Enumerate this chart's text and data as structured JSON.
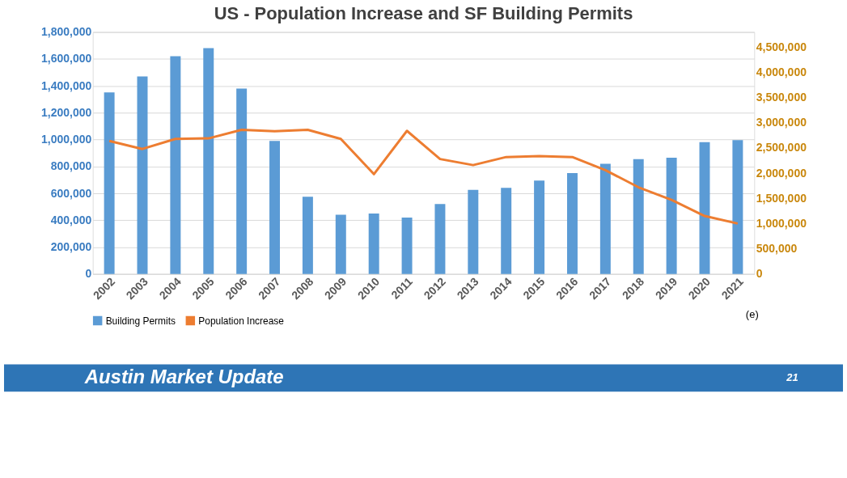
{
  "chart_data": {
    "type": "bar",
    "title": "US - Population Increase and SF Building Permits",
    "categories": [
      "2002",
      "2003",
      "2004",
      "2005",
      "2006",
      "2007",
      "2008",
      "2009",
      "2010",
      "2011",
      "2012",
      "2013",
      "2014",
      "2015",
      "2016",
      "2017",
      "2018",
      "2019",
      "2020",
      "2021"
    ],
    "series": [
      {
        "name": "Building Permits",
        "color": "#5b9bd5",
        "values": [
          1350000,
          1470000,
          1620000,
          1680000,
          1380000,
          990000,
          575000,
          440000,
          450000,
          420000,
          520000,
          625000,
          640000,
          695000,
          750000,
          820000,
          855000,
          865000,
          980000,
          995000
        ]
      },
      {
        "name": "Population Increase",
        "type": "line",
        "axis": "y2",
        "color": "#ed7d31",
        "values": [
          2640000,
          2480000,
          2680000,
          2690000,
          2860000,
          2830000,
          2860000,
          2680000,
          1980000,
          2840000,
          2280000,
          2160000,
          2320000,
          2340000,
          2320000,
          2060000,
          1720000,
          1470000,
          1150000,
          1000000
        ]
      }
    ],
    "ylim": [
      0,
      1800000
    ],
    "yticks": [
      0,
      {
        "value": 200000,
        "label": "200,000"
      },
      {
        "value": 400000,
        "label": "400,000"
      },
      {
        "value": 600000,
        "label": "600,000"
      },
      {
        "value": 800000,
        "label": "800,000"
      },
      {
        "value": 1000000,
        "label": "1,000,000"
      },
      {
        "value": 1200000,
        "label": "1,200,000"
      },
      {
        "value": 1400000,
        "label": "1,400,000"
      },
      {
        "value": 1600000,
        "label": "1,600,000"
      },
      {
        "value": 1800000,
        "label": "1,800,000"
      }
    ],
    "y2lim": [
      0,
      4800000
    ],
    "y2ticks": [
      0,
      {
        "value": 500000,
        "label": "500,000"
      },
      {
        "value": 1000000,
        "label": "1,000,000"
      },
      {
        "value": 1500000,
        "label": "1,500,000"
      },
      {
        "value": 2000000,
        "label": "2,000,000"
      },
      {
        "value": 2500000,
        "label": "2,500,000"
      },
      {
        "value": 3000000,
        "label": "3,000,000"
      },
      {
        "value": 3500000,
        "label": "3,500,000"
      },
      {
        "value": 4000000,
        "label": "4,000,000"
      },
      {
        "value": 4500000,
        "label": "4,500,000"
      }
    ],
    "grid": "y",
    "legend": "bottom",
    "annotations": [
      "(e)",
      "Austin Market Update",
      "21"
    ]
  }
}
